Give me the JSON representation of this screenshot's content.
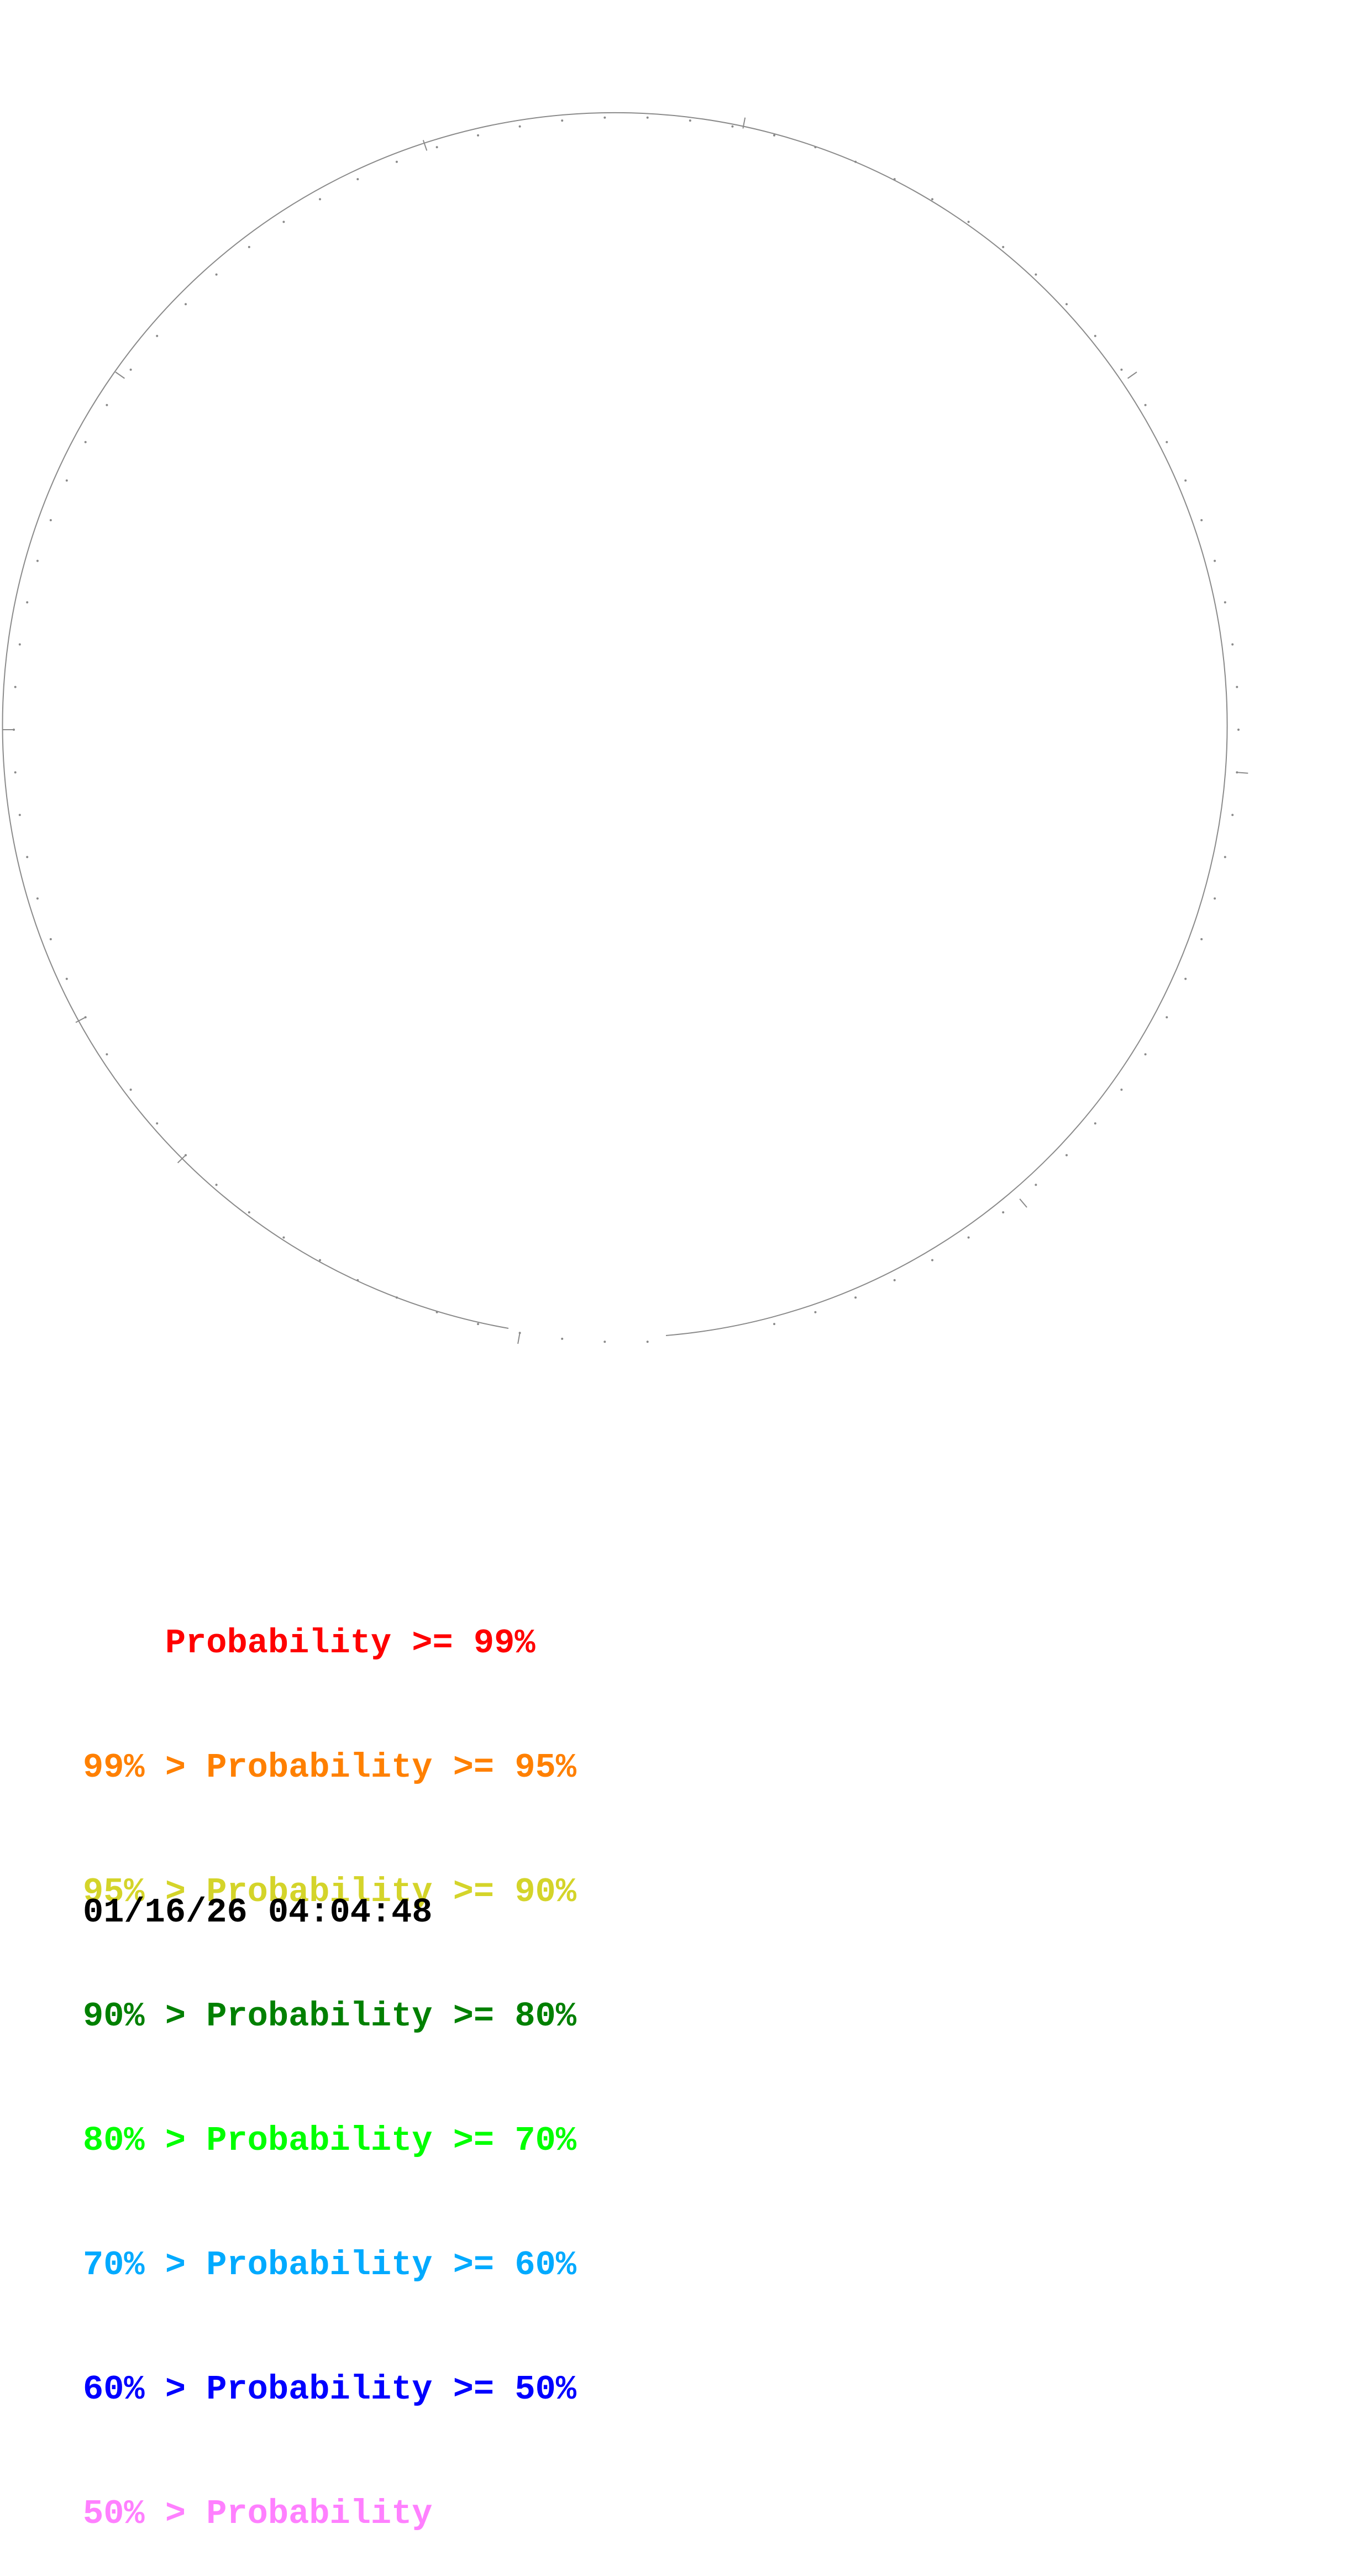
{
  "diagram": {
    "type": "circular-structure",
    "line_color": "#8a8a8a"
  },
  "legend": {
    "items": [
      {
        "prefix": "    ",
        "text": "Probability >= 99%",
        "color": "#ff0000"
      },
      {
        "prefix": "99% > ",
        "text": "Probability >= 95%",
        "color": "#ff8000"
      },
      {
        "prefix": "95% > ",
        "text": "Probability >= 90%",
        "color": "#d4d42a"
      },
      {
        "prefix": "90% > ",
        "text": "Probability >= 80%",
        "color": "#008000"
      },
      {
        "prefix": "80% > ",
        "text": "Probability >= 70%",
        "color": "#00ff00"
      },
      {
        "prefix": "70% > ",
        "text": "Probability >= 60%",
        "color": "#00aaff"
      },
      {
        "prefix": "60% > ",
        "text": "Probability >= 50%",
        "color": "#0000ff"
      },
      {
        "prefix": "50% > ",
        "text": "Probability",
        "color": "#ff80ff"
      }
    ]
  },
  "timestamp": "01/16/26 04:04:48"
}
